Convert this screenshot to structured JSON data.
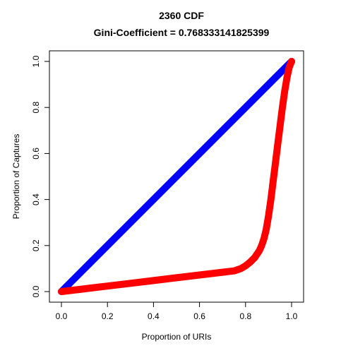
{
  "chart_data": {
    "type": "line",
    "title": "2360 CDF",
    "subtitle": "Gini-Coefficient =  0.768333141825399",
    "xlabel": "Proportion of URIs",
    "ylabel": "Proportion of Captures",
    "xlim": [
      0.0,
      1.0
    ],
    "ylim": [
      0.0,
      1.0
    ],
    "xticks": [
      "0.0",
      "0.2",
      "0.4",
      "0.6",
      "0.8",
      "1.0"
    ],
    "yticks": [
      "0.0",
      "0.2",
      "0.4",
      "0.6",
      "0.8",
      "1.0"
    ],
    "grid": false,
    "legend": "none",
    "series": [
      {
        "color": "#0000ff",
        "x": [
          0.0,
          1.0
        ],
        "y": [
          0.0,
          1.0
        ]
      },
      {
        "color": "#ff0000",
        "x": [
          0.0,
          0.1,
          0.2,
          0.3,
          0.4,
          0.5,
          0.6,
          0.7,
          0.75,
          0.78,
          0.8,
          0.82,
          0.84,
          0.86,
          0.87,
          0.88,
          0.89,
          0.9,
          0.91,
          0.92,
          0.93,
          0.94,
          0.95,
          0.96,
          0.97,
          0.98,
          0.99,
          1.0
        ],
        "y": [
          0.0,
          0.012,
          0.024,
          0.036,
          0.048,
          0.06,
          0.072,
          0.084,
          0.09,
          0.1,
          0.112,
          0.128,
          0.148,
          0.178,
          0.2,
          0.23,
          0.27,
          0.33,
          0.4,
          0.48,
          0.56,
          0.64,
          0.72,
          0.8,
          0.87,
          0.93,
          0.975,
          1.0
        ]
      }
    ]
  }
}
